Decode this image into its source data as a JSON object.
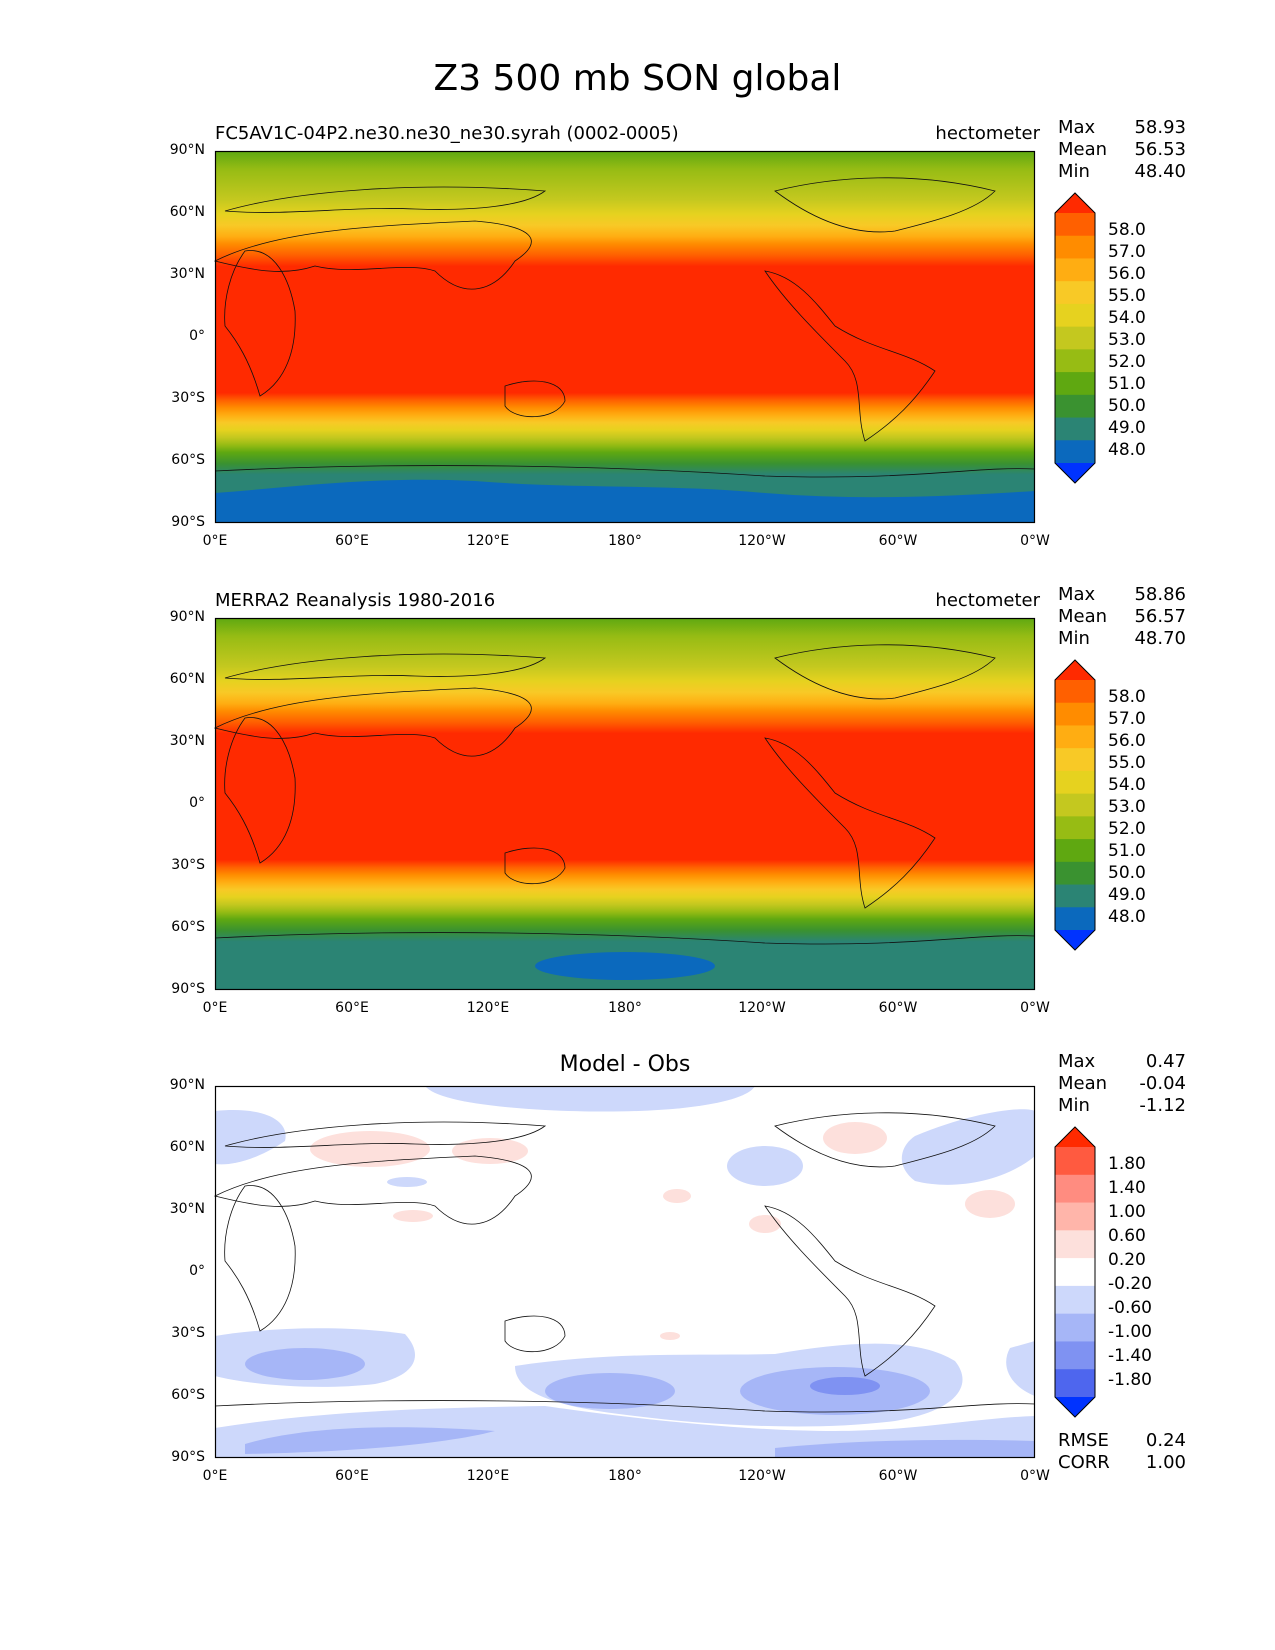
{
  "figure": {
    "title": "Z3 500 mb SON global"
  },
  "axes": {
    "lat_labels": [
      "90°N",
      "60°N",
      "30°N",
      "0°",
      "30°S",
      "60°S",
      "90°S"
    ],
    "lon_labels": [
      "0°E",
      "60°E",
      "120°E",
      "180°",
      "120°W",
      "60°W",
      "0°W"
    ]
  },
  "panels": [
    {
      "left_title": "FC5AV1C-04P2.ne30.ne30_ne30.syrah (0002-0005)",
      "right_title": "hectometer",
      "stats": [
        {
          "label": "Max",
          "value": "58.93"
        },
        {
          "label": "Mean",
          "value": "56.53"
        },
        {
          "label": "Min",
          "value": "48.40"
        }
      ],
      "colorbar": {
        "labels": [
          "58.0",
          "57.0",
          "56.0",
          "55.0",
          "54.0",
          "53.0",
          "52.0",
          "51.0",
          "50.0",
          "49.0",
          "48.0"
        ],
        "colors": [
          "#ff2a00",
          "#ff6000",
          "#ff8c00",
          "#ffad12",
          "#f8c926",
          "#e6d21f",
          "#c4c81f",
          "#97bc14",
          "#5fa811",
          "#3a9230",
          "#2b8474",
          "#0b69bd",
          "#0033ff"
        ]
      }
    },
    {
      "left_title": "MERRA2 Reanalysis 1980-2016",
      "right_title": "hectometer",
      "stats": [
        {
          "label": "Max",
          "value": "58.86"
        },
        {
          "label": "Mean",
          "value": "56.57"
        },
        {
          "label": "Min",
          "value": "48.70"
        }
      ],
      "colorbar": {
        "labels": [
          "58.0",
          "57.0",
          "56.0",
          "55.0",
          "54.0",
          "53.0",
          "52.0",
          "51.0",
          "50.0",
          "49.0",
          "48.0"
        ],
        "colors": [
          "#ff2a00",
          "#ff6000",
          "#ff8c00",
          "#ffad12",
          "#f8c926",
          "#e6d21f",
          "#c4c81f",
          "#97bc14",
          "#5fa811",
          "#3a9230",
          "#2b8474",
          "#0b69bd",
          "#0033ff"
        ]
      }
    },
    {
      "center_title": "Model - Obs",
      "stats": [
        {
          "label": "Max",
          "value": "0.47"
        },
        {
          "label": "Mean",
          "value": "-0.04"
        },
        {
          "label": "Min",
          "value": "-1.12"
        }
      ],
      "colorbar": {
        "labels": [
          "1.80",
          "1.40",
          "1.00",
          "0.60",
          "0.20",
          "-0.20",
          "-0.60",
          "-1.00",
          "-1.40",
          "-1.80"
        ],
        "colors": [
          "#ff2a00",
          "#ff5a40",
          "#ff8c80",
          "#ffb5aa",
          "#fde0dc",
          "#ffffff",
          "#cdd8fb",
          "#a6b6f7",
          "#7f92f2",
          "#4e66ee",
          "#0033ff"
        ]
      },
      "metrics": [
        {
          "label": "RMSE",
          "value": "0.24"
        },
        {
          "label": "CORR",
          "value": "1.00"
        }
      ]
    }
  ]
}
